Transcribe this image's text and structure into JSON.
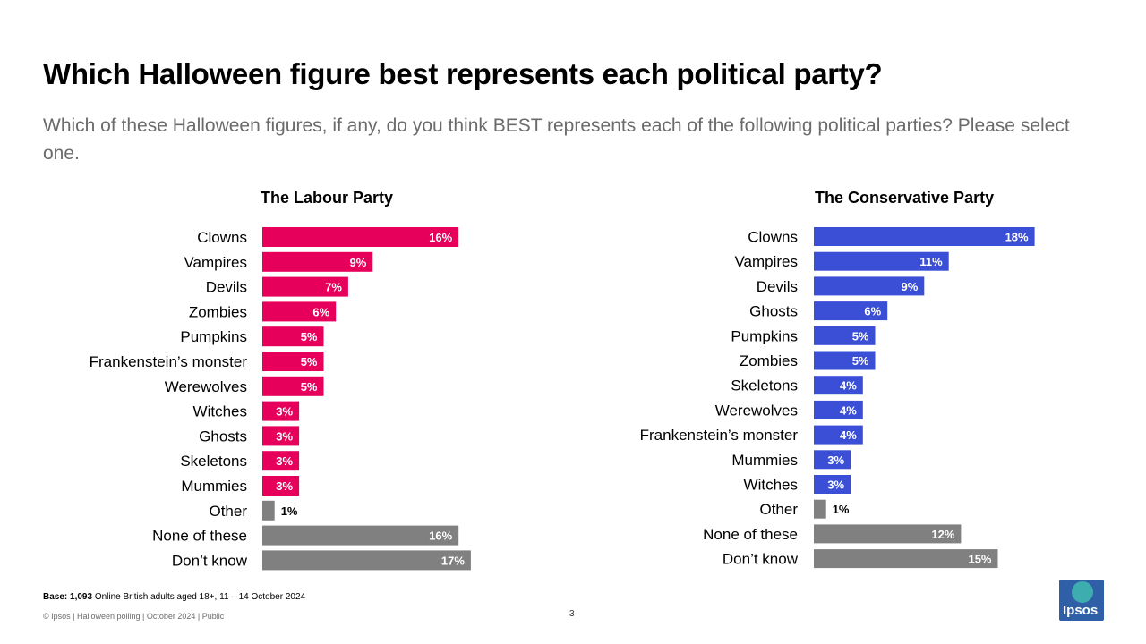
{
  "title": "Which Halloween figure best represents each political party?",
  "subtitle": "Which of these Halloween figures, if any, do you think BEST represents each of the following political parties? Please select one.",
  "chart_data": [
    {
      "type": "bar",
      "orientation": "horizontal",
      "title": "The Labour Party",
      "accent_color": "#e6005c",
      "neutral_color": "#808080",
      "neutral_categories": [
        "Other",
        "None of these",
        "Don’t know"
      ],
      "categories": [
        "Clowns",
        "Vampires",
        "Devils",
        "Zombies",
        "Pumpkins",
        "Frankenstein’s monster",
        "Werewolves",
        "Witches",
        "Ghosts",
        "Skeletons",
        "Mummies",
        "Other",
        "None of these",
        "Don’t know"
      ],
      "values": [
        16,
        9,
        7,
        6,
        5,
        5,
        5,
        3,
        3,
        3,
        3,
        1,
        16,
        17
      ],
      "labels": [
        "16%",
        "9%",
        "7%",
        "6%",
        "5%",
        "5%",
        "5%",
        "3%",
        "3%",
        "3%",
        "3%",
        "1%",
        "16%",
        "17%"
      ]
    },
    {
      "type": "bar",
      "orientation": "horizontal",
      "title": "The Conservative Party",
      "accent_color": "#3a4fd6",
      "neutral_color": "#808080",
      "neutral_categories": [
        "Other",
        "None of these",
        "Don’t know"
      ],
      "categories": [
        "Clowns",
        "Vampires",
        "Devils",
        "Ghosts",
        "Pumpkins",
        "Zombies",
        "Skeletons",
        "Werewolves",
        "Frankenstein’s monster",
        "Mummies",
        "Witches",
        "Other",
        "None of these",
        "Don’t know"
      ],
      "values": [
        18,
        11,
        9,
        6,
        5,
        5,
        4,
        4,
        4,
        3,
        3,
        1,
        12,
        15
      ],
      "labels": [
        "18%",
        "11%",
        "9%",
        "6%",
        "5%",
        "5%",
        "4%",
        "4%",
        "4%",
        "3%",
        "3%",
        "1%",
        "12%",
        "15%"
      ]
    }
  ],
  "footer": {
    "base_bold": "Base: 1,093",
    "base_rest": " Online British adults aged 18+, 11 – 14 October 2024",
    "copyright": "© Ipsos | Halloween polling | October 2024 | Public",
    "page_number": "3",
    "logo_text": "Ipsos"
  }
}
